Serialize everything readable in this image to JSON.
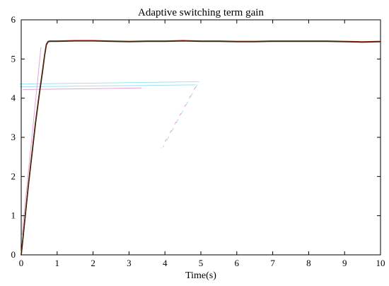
{
  "chart_data": {
    "type": "line",
    "title": "Adaptive switching term gain",
    "xlabel": "Time(s)",
    "ylabel": "",
    "xlim": [
      0,
      10
    ],
    "ylim": [
      0,
      6
    ],
    "xticks": [
      0,
      1,
      2,
      3,
      4,
      5,
      6,
      7,
      8,
      9,
      10
    ],
    "yticks": [
      0,
      1,
      2,
      3,
      4,
      5,
      6
    ],
    "grid": false,
    "legend": "none",
    "series": [
      {
        "color": "#cc1f1f",
        "x": [
          0,
          0.05,
          0.1,
          0.2,
          0.3,
          0.4,
          0.5,
          0.6,
          0.65,
          0.7,
          0.75,
          0.8,
          1.0,
          1.5,
          2.0,
          2.5,
          3.0,
          3.5,
          4.0,
          4.5,
          5.0,
          5.5,
          6.0,
          6.5,
          7.0,
          7.5,
          8.0,
          8.5,
          9.0,
          9.5,
          10.0
        ],
        "y": [
          0,
          0.45,
          0.9,
          1.8,
          2.6,
          3.4,
          4.1,
          4.75,
          5.1,
          5.38,
          5.45,
          5.46,
          5.46,
          5.47,
          5.47,
          5.46,
          5.45,
          5.46,
          5.46,
          5.47,
          5.46,
          5.46,
          5.45,
          5.45,
          5.46,
          5.46,
          5.46,
          5.46,
          5.45,
          5.44,
          5.45
        ]
      },
      {
        "color": "#3a2a10",
        "x": [
          0,
          0.05,
          0.1,
          0.2,
          0.3,
          0.4,
          0.5,
          0.6,
          0.65,
          0.7,
          0.75,
          0.8,
          1.0,
          1.5,
          2.0,
          2.5,
          3.0,
          3.5,
          4.0,
          4.5,
          5.0,
          5.5,
          6.0,
          6.5,
          7.0,
          7.5,
          8.0,
          8.5,
          9.0,
          9.5,
          10.0
        ],
        "y": [
          0,
          0.43,
          0.88,
          1.77,
          2.57,
          3.37,
          4.07,
          4.72,
          5.08,
          5.36,
          5.44,
          5.45,
          5.45,
          5.46,
          5.46,
          5.45,
          5.44,
          5.45,
          5.45,
          5.46,
          5.45,
          5.45,
          5.44,
          5.44,
          5.45,
          5.45,
          5.45,
          5.45,
          5.44,
          5.43,
          5.44
        ]
      }
    ]
  },
  "colors": {
    "axis": "#000000",
    "artifact_pink": "#e6a3d6",
    "artifact_cyan": "#9fe3ee"
  }
}
